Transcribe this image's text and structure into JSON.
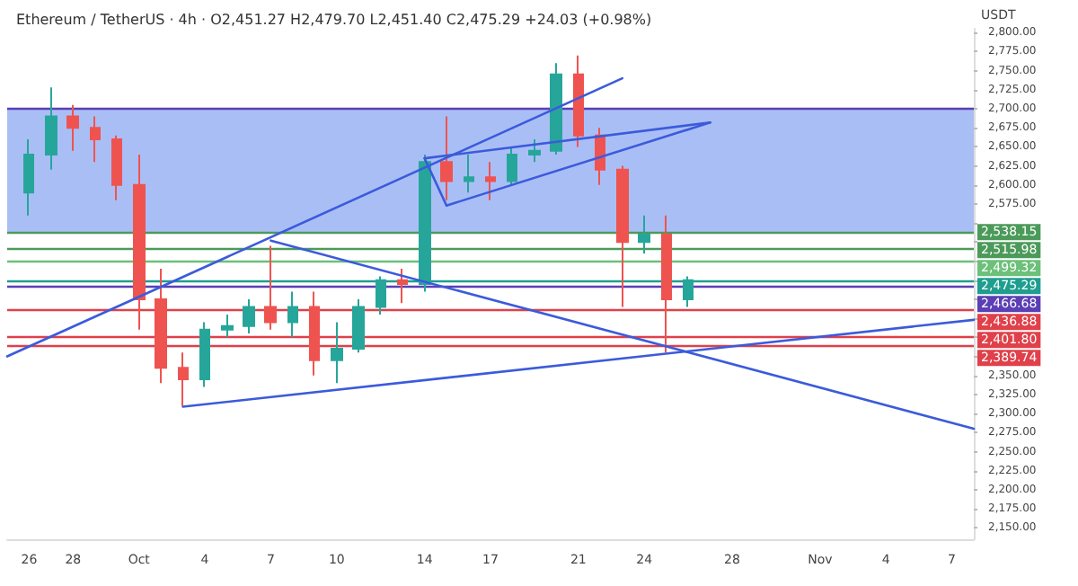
{
  "chart_data": {
    "type": "candlestick",
    "title": "Ethereum / TetherUS · 4h · O2,451.27 H2,479.70 L2,451.40 C2,475.29 +24.03 (+0.98%)",
    "ylabel": "USDT",
    "x": [
      "--09-26",
      "--09-27",
      "--09-28",
      "--09-29",
      "--09-30",
      "--10-01",
      "--10-02",
      "--10-03",
      "--10-04",
      "--10-05",
      "--10-06",
      "--10-07",
      "--10-08",
      "--10-09",
      "--10-10",
      "--10-11",
      "--10-12",
      "--10-13",
      "--10-14",
      "--10-15",
      "--10-16",
      "--10-17",
      "--10-18",
      "--10-19",
      "--10-20",
      "--10-21",
      "--10-22",
      "--10-23",
      "--10-24",
      "--10-25",
      "--10-26"
    ],
    "ohlc": [
      [
        2590,
        2660,
        2560,
        2640
      ],
      [
        2640,
        2728,
        2620,
        2690
      ],
      [
        2690,
        2705,
        2645,
        2675
      ],
      [
        2675,
        2690,
        2630,
        2660
      ],
      [
        2660,
        2665,
        2580,
        2600
      ],
      [
        2600,
        2640,
        2410,
        2450
      ],
      [
        2450,
        2490,
        2340,
        2360
      ],
      [
        2360,
        2380,
        2310,
        2345
      ],
      [
        2345,
        2420,
        2335,
        2410
      ],
      [
        2410,
        2430,
        2400,
        2415
      ],
      [
        2415,
        2450,
        2405,
        2440
      ],
      [
        2440,
        2520,
        2410,
        2420
      ],
      [
        2420,
        2460,
        2400,
        2440
      ],
      [
        2440,
        2460,
        2350,
        2370
      ],
      [
        2370,
        2420,
        2340,
        2385
      ],
      [
        2385,
        2450,
        2380,
        2440
      ],
      [
        2440,
        2480,
        2430,
        2475
      ],
      [
        2475,
        2490,
        2445,
        2470
      ],
      [
        2470,
        2640,
        2460,
        2630
      ],
      [
        2630,
        2690,
        2580,
        2605
      ],
      [
        2605,
        2640,
        2590,
        2610
      ],
      [
        2610,
        2630,
        2580,
        2605
      ],
      [
        2605,
        2650,
        2600,
        2640
      ],
      [
        2640,
        2660,
        2630,
        2645
      ],
      [
        2645,
        2760,
        2640,
        2745
      ],
      [
        2745,
        2770,
        2650,
        2665
      ],
      [
        2665,
        2675,
        2600,
        2620
      ],
      [
        2620,
        2625,
        2440,
        2525
      ],
      [
        2525,
        2560,
        2510,
        2535
      ],
      [
        2535,
        2560,
        2380,
        2450
      ],
      [
        2450,
        2480,
        2440,
        2475
      ]
    ],
    "colors": [
      "#26a69a",
      "#26a69a",
      "#ef5350",
      "#ef5350",
      "#ef5350",
      "#ef5350",
      "#ef5350",
      "#ef5350",
      "#26a69a",
      "#26a69a",
      "#26a69a",
      "#ef5350",
      "#26a69a",
      "#ef5350",
      "#26a69a",
      "#26a69a",
      "#26a69a",
      "#ef5350",
      "#26a69a",
      "#ef5350",
      "#26a69a",
      "#ef5350",
      "#26a69a",
      "#26a69a",
      "#26a69a",
      "#ef5350",
      "#ef5350",
      "#ef5350",
      "#26a69a",
      "#ef5350",
      "#26a69a"
    ],
    "series": [
      {
        "type": "line",
        "x": [
          "--09-25",
          "--10-23"
        ],
        "values": [
          2375,
          2740
        ],
        "color": "#3b5bdb"
      },
      {
        "type": "line",
        "x": [
          "--10-07",
          "--11-08"
        ],
        "values": [
          2527,
          2280
        ],
        "color": "#3b5bdb"
      },
      {
        "type": "line",
        "x": [
          "--10-03",
          "--11-08"
        ],
        "values": [
          2309,
          2423
        ],
        "color": "#3b5bdb"
      },
      {
        "type": "line",
        "x": [
          "--10-14",
          "--10-27"
        ],
        "values": [
          2635,
          2682
        ],
        "color": "#3b5bdb"
      },
      {
        "type": "line",
        "x": [
          "--10-14",
          "--10-15"
        ],
        "values": [
          2635,
          2573
        ],
        "color": "#3b5bdb"
      },
      {
        "type": "line",
        "x": [
          "--10-15",
          "--10-27"
        ],
        "values": [
          2573,
          2682
        ],
        "color": "#3b5bdb"
      }
    ],
    "xlim": [
      "--09-25",
      "--11-08"
    ],
    "xticks": [
      {
        "value": "--09-26",
        "label": "26"
      },
      {
        "value": "--09-28",
        "label": "28"
      },
      {
        "value": "--10-01",
        "label": "Oct"
      },
      {
        "value": "--10-04",
        "label": "4"
      },
      {
        "value": "--10-07",
        "label": "7"
      },
      {
        "value": "--10-10",
        "label": "10"
      },
      {
        "value": "--10-14",
        "label": "14"
      },
      {
        "value": "--10-17",
        "label": "17"
      },
      {
        "value": "--10-21",
        "label": "21"
      },
      {
        "value": "--10-24",
        "label": "24"
      },
      {
        "value": "--10-28",
        "label": "28"
      },
      {
        "value": "--11-01",
        "label": "Nov"
      },
      {
        "value": "--11-04",
        "label": "4"
      },
      {
        "value": "--11-07",
        "label": "7"
      }
    ],
    "ylim": [
      2135,
      2805
    ],
    "yticks": [
      {
        "value": 2150,
        "label": "2,150.00"
      },
      {
        "value": 2175,
        "label": "2,175.00"
      },
      {
        "value": 2200,
        "label": "2,200.00"
      },
      {
        "value": 2225,
        "label": "2,225.00"
      },
      {
        "value": 2250,
        "label": "2,250.00"
      },
      {
        "value": 2275,
        "label": "2,275.00"
      },
      {
        "value": 2300,
        "label": "2,300.00"
      },
      {
        "value": 2325,
        "label": "2,325.00"
      },
      {
        "value": 2350,
        "label": "2,350.00"
      },
      {
        "value": 2375,
        "label": null
      },
      {
        "value": 2400,
        "label": null
      },
      {
        "value": 2425,
        "label": null
      },
      {
        "value": 2450,
        "label": null
      },
      {
        "value": 2475,
        "label": null
      },
      {
        "value": 2500,
        "label": null
      },
      {
        "value": 2525,
        "label": null
      },
      {
        "value": 2550,
        "label": null
      },
      {
        "value": 2575,
        "label": "2,575.00"
      },
      {
        "value": 2600,
        "label": "2,600.00"
      },
      {
        "value": 2625,
        "label": "2,625.00"
      },
      {
        "value": 2650,
        "label": "2,650.00"
      },
      {
        "value": 2675,
        "label": "2,675.00"
      },
      {
        "value": 2700,
        "label": "2,700.00"
      },
      {
        "value": 2725,
        "label": "2,725.00"
      },
      {
        "value": 2750,
        "label": "2,750.00"
      },
      {
        "value": 2775,
        "label": "2,775.00"
      },
      {
        "value": 2800,
        "label": "2,800.00"
      }
    ],
    "bands": [
      {
        "axis": "y",
        "from": 2538.15,
        "to": 2700,
        "color": "#aabef6"
      }
    ],
    "ref_lines": [
      {
        "axis": "y",
        "value": 2700,
        "label": null,
        "color": "#5a3fb5"
      },
      {
        "axis": "y",
        "value": 2538.15,
        "label": "2,538.15",
        "color": "#4c9a5a"
      },
      {
        "axis": "y",
        "value": 2515.98,
        "label": "2,515.98",
        "color": "#4c9a5a"
      },
      {
        "axis": "y",
        "value": 2499.32,
        "label": "2,499.32",
        "color": "#6cc07a"
      },
      {
        "axis": "y",
        "value": 2475.29,
        "label": "2,475.29",
        "color": "#1f9e8f"
      },
      {
        "axis": "y",
        "value": 2466.68,
        "label": "2,466.68",
        "color": "#5a3fb5"
      },
      {
        "axis": "y",
        "value": 2436.88,
        "label": "2,436.88",
        "color": "#e0404a"
      },
      {
        "axis": "y",
        "value": 2401.8,
        "label": "2,401.80",
        "color": "#e0404a"
      },
      {
        "axis": "y",
        "value": 2389.74,
        "label": "2,389.74",
        "color": "#e0404a"
      }
    ]
  }
}
